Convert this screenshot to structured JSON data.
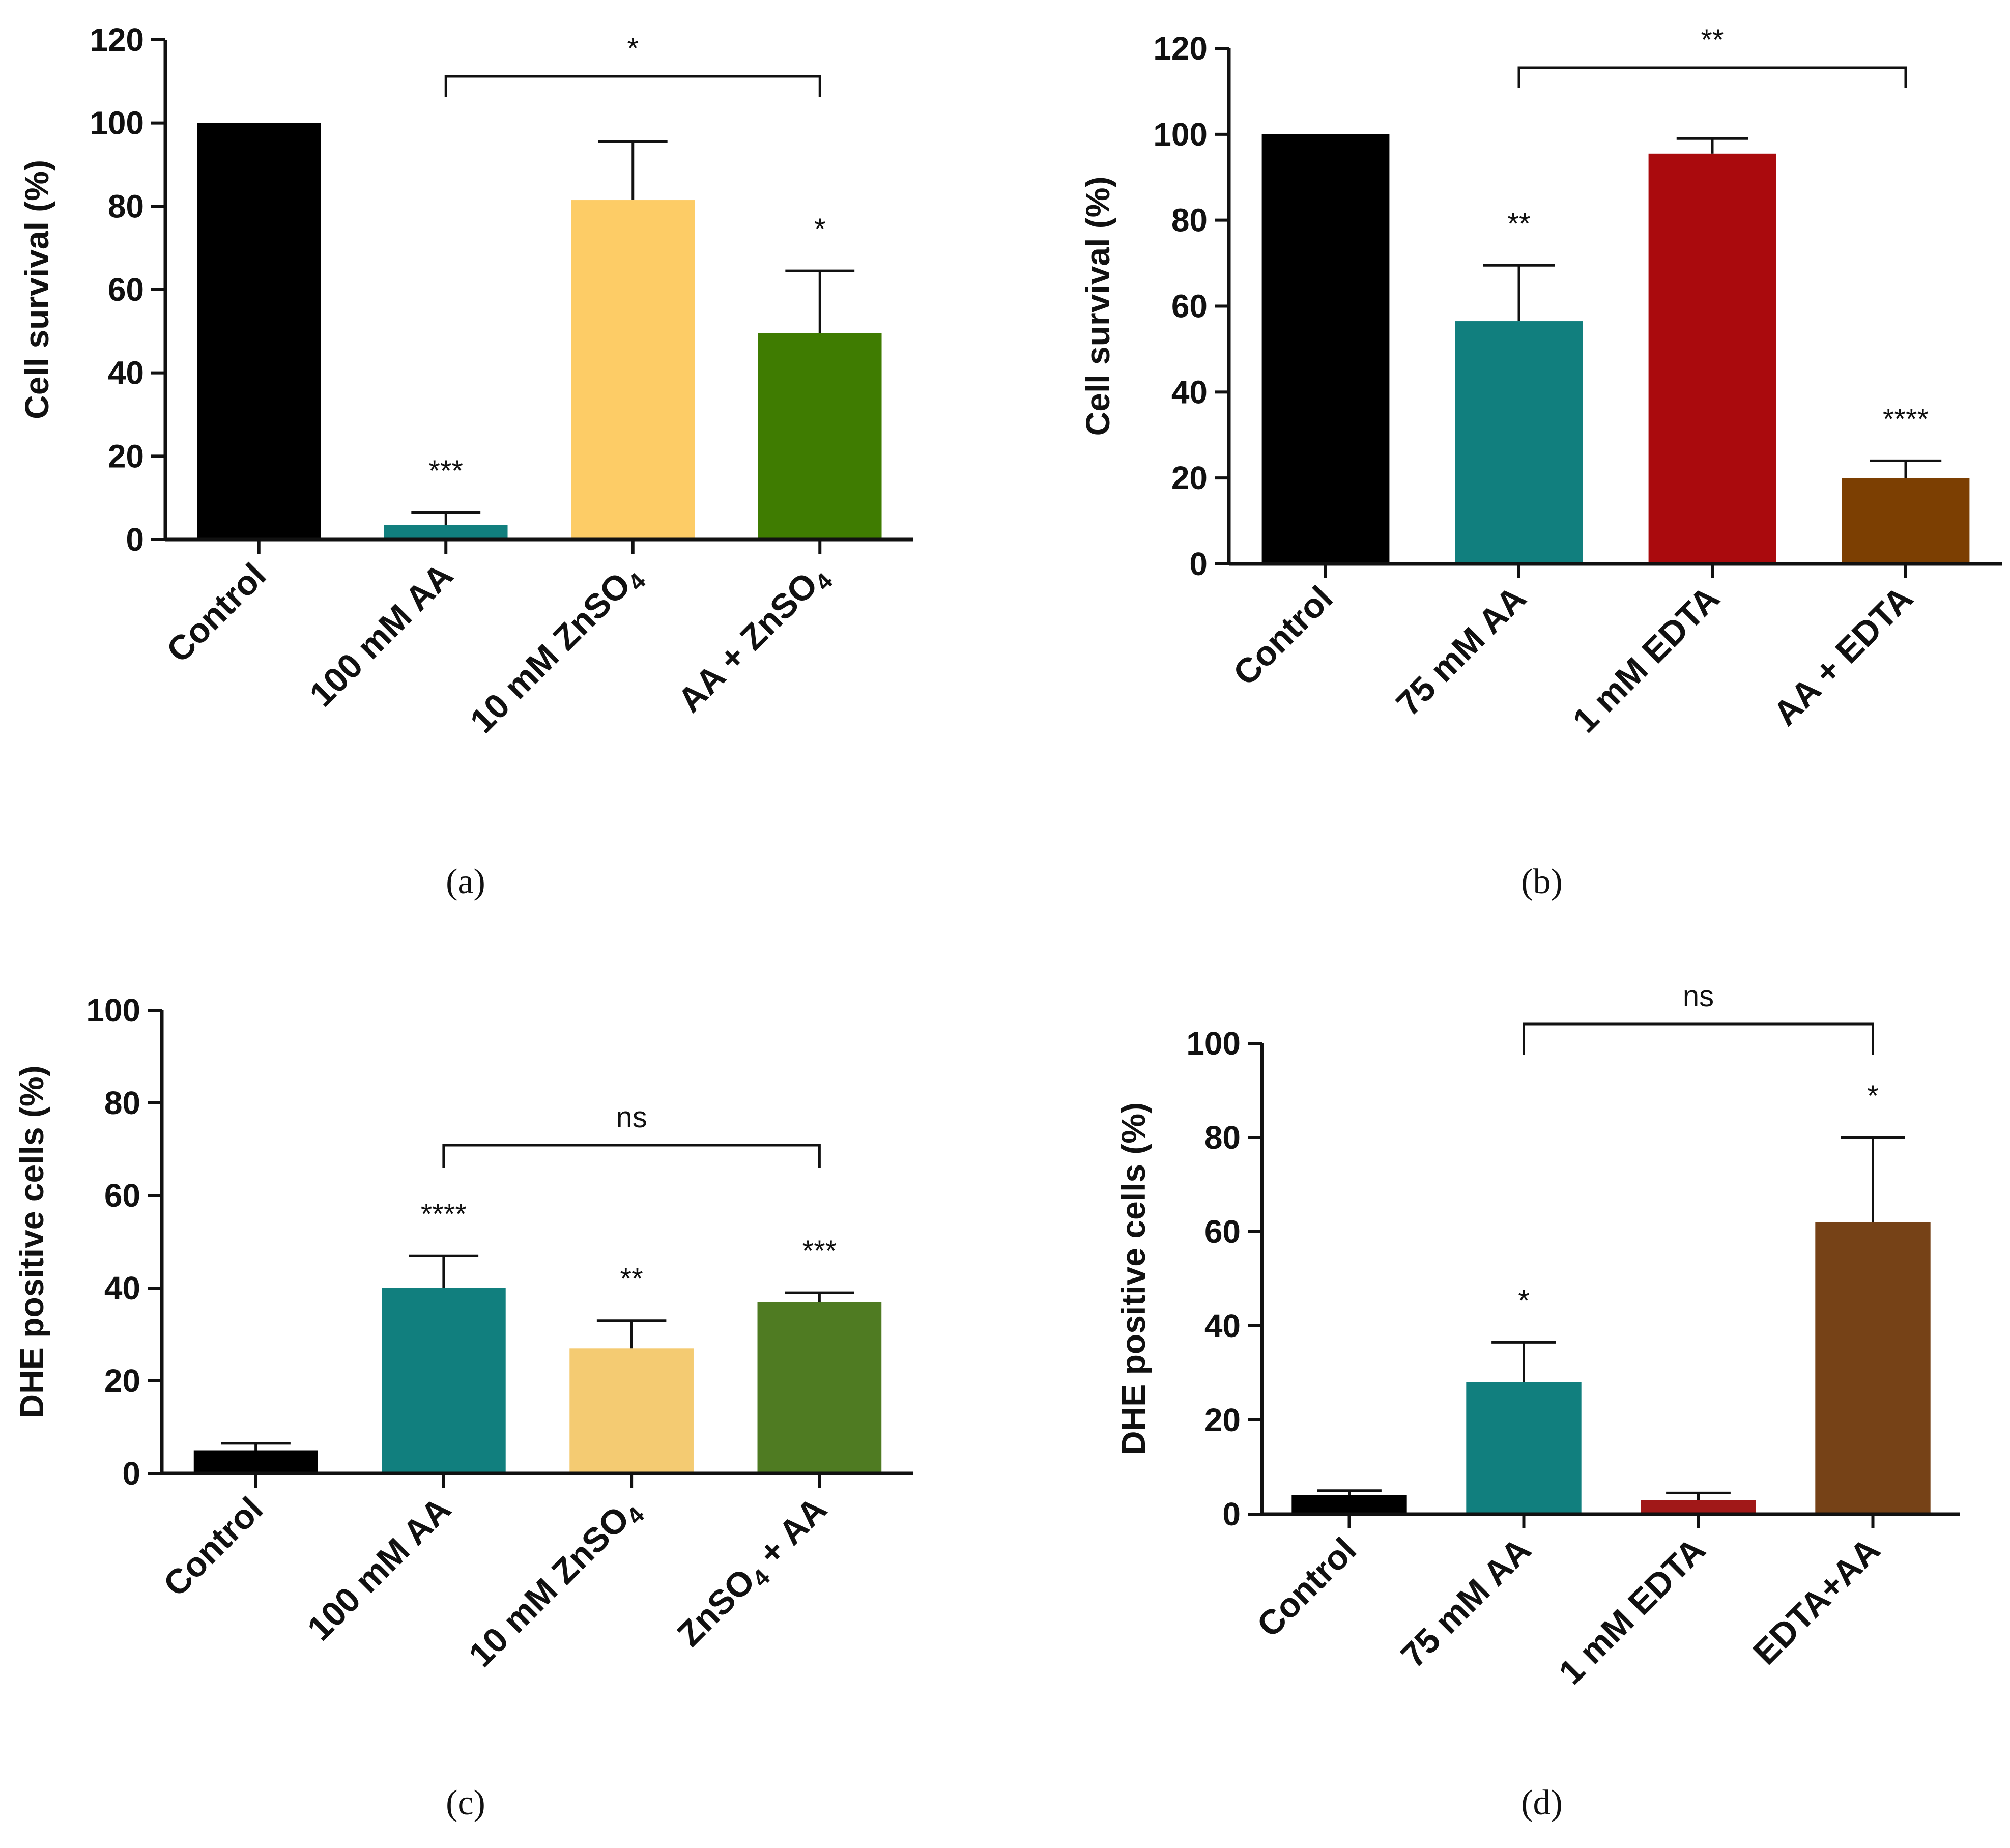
{
  "chart_data": [
    {
      "panel": "(a)",
      "type": "bar",
      "ylabel": "Cell survival (%)",
      "ylim": [
        0,
        120
      ],
      "yticks": [
        "0",
        "20",
        "40",
        "60",
        "80",
        "100",
        "120"
      ],
      "categories": [
        {
          "label": "Control"
        },
        {
          "label": "100 mM AA"
        },
        {
          "label": "10 mM ZnSO",
          "sub": "4"
        },
        {
          "label": "AA + ZnSO",
          "sub": "4"
        }
      ],
      "values": [
        100,
        3.5,
        81.5,
        49.5
      ],
      "errors": [
        0,
        3,
        14,
        15
      ],
      "colors": [
        "#000000",
        "#117f7e",
        "#fdcc66",
        "#3f7c01"
      ],
      "significance": [
        "",
        "***",
        "",
        "*"
      ],
      "bracket": {
        "from": 1,
        "to": 3,
        "label": "*"
      }
    },
    {
      "panel": "(b)",
      "type": "bar",
      "ylabel": "Cell survival (%)",
      "ylim": [
        0,
        120
      ],
      "yticks": [
        "0",
        "20",
        "40",
        "60",
        "80",
        "100",
        "120"
      ],
      "categories": [
        {
          "label": "Control"
        },
        {
          "label": "75 mM AA"
        },
        {
          "label": "1 mM EDTA"
        },
        {
          "label": "AA + EDTA"
        }
      ],
      "values": [
        100,
        56.5,
        95.5,
        20
      ],
      "errors": [
        0,
        13,
        3.5,
        4
      ],
      "colors": [
        "#000000",
        "#117f7e",
        "#aa0a0d",
        "#7c3f02"
      ],
      "significance": [
        "",
        "**",
        "",
        "****"
      ],
      "bracket": {
        "from": 1,
        "to": 3,
        "label": "**"
      }
    },
    {
      "panel": "(c)",
      "type": "bar",
      "ylabel": "DHE positive cells (%)",
      "ylim": [
        0,
        100
      ],
      "yticks": [
        "0",
        "20",
        "40",
        "60",
        "80",
        "100"
      ],
      "categories": [
        {
          "label": "Control"
        },
        {
          "label": "100 mM AA"
        },
        {
          "label": "10 mM ZnSO",
          "sub": "4"
        },
        {
          "label": "ZnSO",
          "sub": "4",
          "tail": " + AA"
        }
      ],
      "values": [
        5,
        40,
        27,
        37
      ],
      "errors": [
        1.5,
        7,
        6,
        2
      ],
      "colors": [
        "#000000",
        "#117f7e",
        "#f4cb72",
        "#4f7b22"
      ],
      "significance": [
        "",
        "****",
        "**",
        "***"
      ],
      "bracket": {
        "from": 1,
        "to": 3,
        "label": "ns"
      }
    },
    {
      "panel": "(d)",
      "type": "bar",
      "ylabel": "DHE positive cells (%)",
      "ylim": [
        0,
        100
      ],
      "yticks": [
        "0",
        "20",
        "40",
        "60",
        "80",
        "100"
      ],
      "categories": [
        {
          "label": "Control"
        },
        {
          "label": "75 mM AA"
        },
        {
          "label": "1 mM EDTA"
        },
        {
          "label": "EDTA+AA"
        }
      ],
      "values": [
        4,
        28,
        3,
        62
      ],
      "errors": [
        1,
        8.5,
        1.5,
        18
      ],
      "colors": [
        "#000000",
        "#117f7e",
        "#a11818",
        "#764217"
      ],
      "significance": [
        "",
        "*",
        "",
        "*"
      ],
      "bracket": {
        "from": 1,
        "to": 3,
        "label": "ns"
      }
    }
  ]
}
